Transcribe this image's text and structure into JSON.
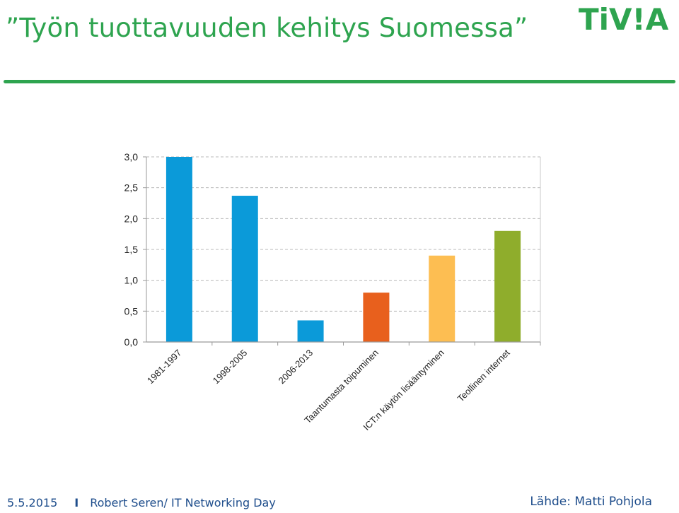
{
  "slide": {
    "title": "”Työn tuottavuuden kehitys Suomessa”",
    "logo_text": "TiV!A"
  },
  "footer": {
    "date": "5.5.2015",
    "separator": "I",
    "presenter": "Robert Seren/ IT Networking Day",
    "source": "Lähde: Matti Pohjola"
  },
  "colors": {
    "brand_green": "#2ea44f",
    "footer_blue": "#1f4e8c"
  },
  "chart_data": {
    "type": "bar",
    "title": "",
    "xlabel": "",
    "ylabel": "",
    "ylim": [
      0,
      3
    ],
    "y_ticks": [
      "0,0",
      "0,5",
      "1,0",
      "1,5",
      "2,0",
      "2,5",
      "3,0"
    ],
    "grid": true,
    "categories": [
      "1981-1997",
      "1998-2005",
      "2006-2013",
      "Taantumasta toipuminen",
      "ICT:n käytön lisääntyminen",
      "Teollinen internet"
    ],
    "values": [
      3.0,
      2.37,
      0.35,
      0.8,
      1.4,
      1.8
    ],
    "bar_colors": [
      "#0b9ad9",
      "#0b9ad9",
      "#0b9ad9",
      "#e8601d",
      "#fdbe52",
      "#8fad2c"
    ]
  }
}
